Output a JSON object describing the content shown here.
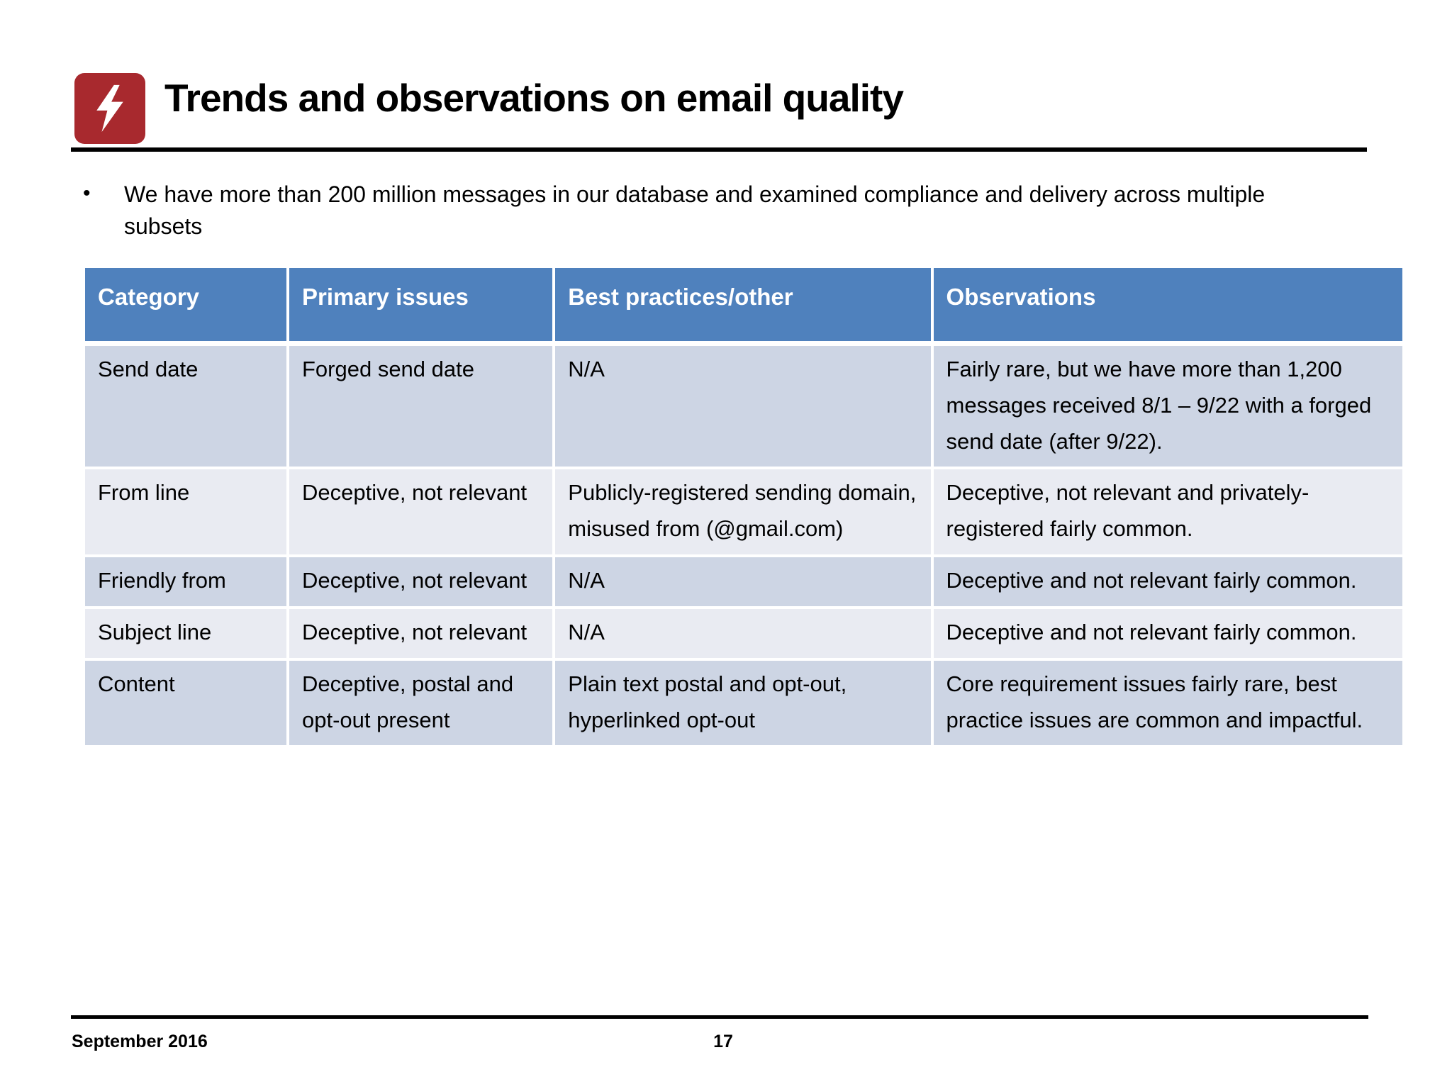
{
  "theme": {
    "header_bg": "#4F81BD",
    "row_dark": "#CDD5E4",
    "row_light": "#E9EBF2",
    "icon_red": "#A8292E"
  },
  "slide": {
    "title": "Trends and observations on email quality",
    "bullet": "We have more than 200 million messages in our database and examined compliance and delivery across multiple subsets",
    "footer": {
      "date": "September 2016",
      "page_number": "17"
    }
  },
  "table": {
    "columns": [
      "Category",
      "Primary issues",
      "Best practices/other",
      "Observations"
    ],
    "rows": [
      {
        "category": "Send date",
        "primary_issues": "Forged send date",
        "best_practices": "N/A",
        "observations": "Fairly rare, but we have more than 1,200 messages received 8/1 – 9/22 with a forged send date (after 9/22)."
      },
      {
        "category": "From line",
        "primary_issues": "Deceptive, not relevant",
        "best_practices": "Publicly-registered sending domain, misused from (@gmail.com)",
        "observations": "Deceptive, not relevant and privately-registered fairly common."
      },
      {
        "category": "Friendly from",
        "primary_issues": "Deceptive, not relevant",
        "best_practices": "N/A",
        "observations": "Deceptive and not relevant fairly common."
      },
      {
        "category": "Subject line",
        "primary_issues": "Deceptive, not relevant",
        "best_practices": "N/A",
        "observations": "Deceptive and not relevant fairly common."
      },
      {
        "category": "Content",
        "primary_issues": "Deceptive, postal and opt-out present",
        "best_practices": "Plain text postal and opt-out, hyperlinked opt-out",
        "observations": "Core requirement issues fairly rare, best practice issues are common and impactful."
      }
    ]
  }
}
